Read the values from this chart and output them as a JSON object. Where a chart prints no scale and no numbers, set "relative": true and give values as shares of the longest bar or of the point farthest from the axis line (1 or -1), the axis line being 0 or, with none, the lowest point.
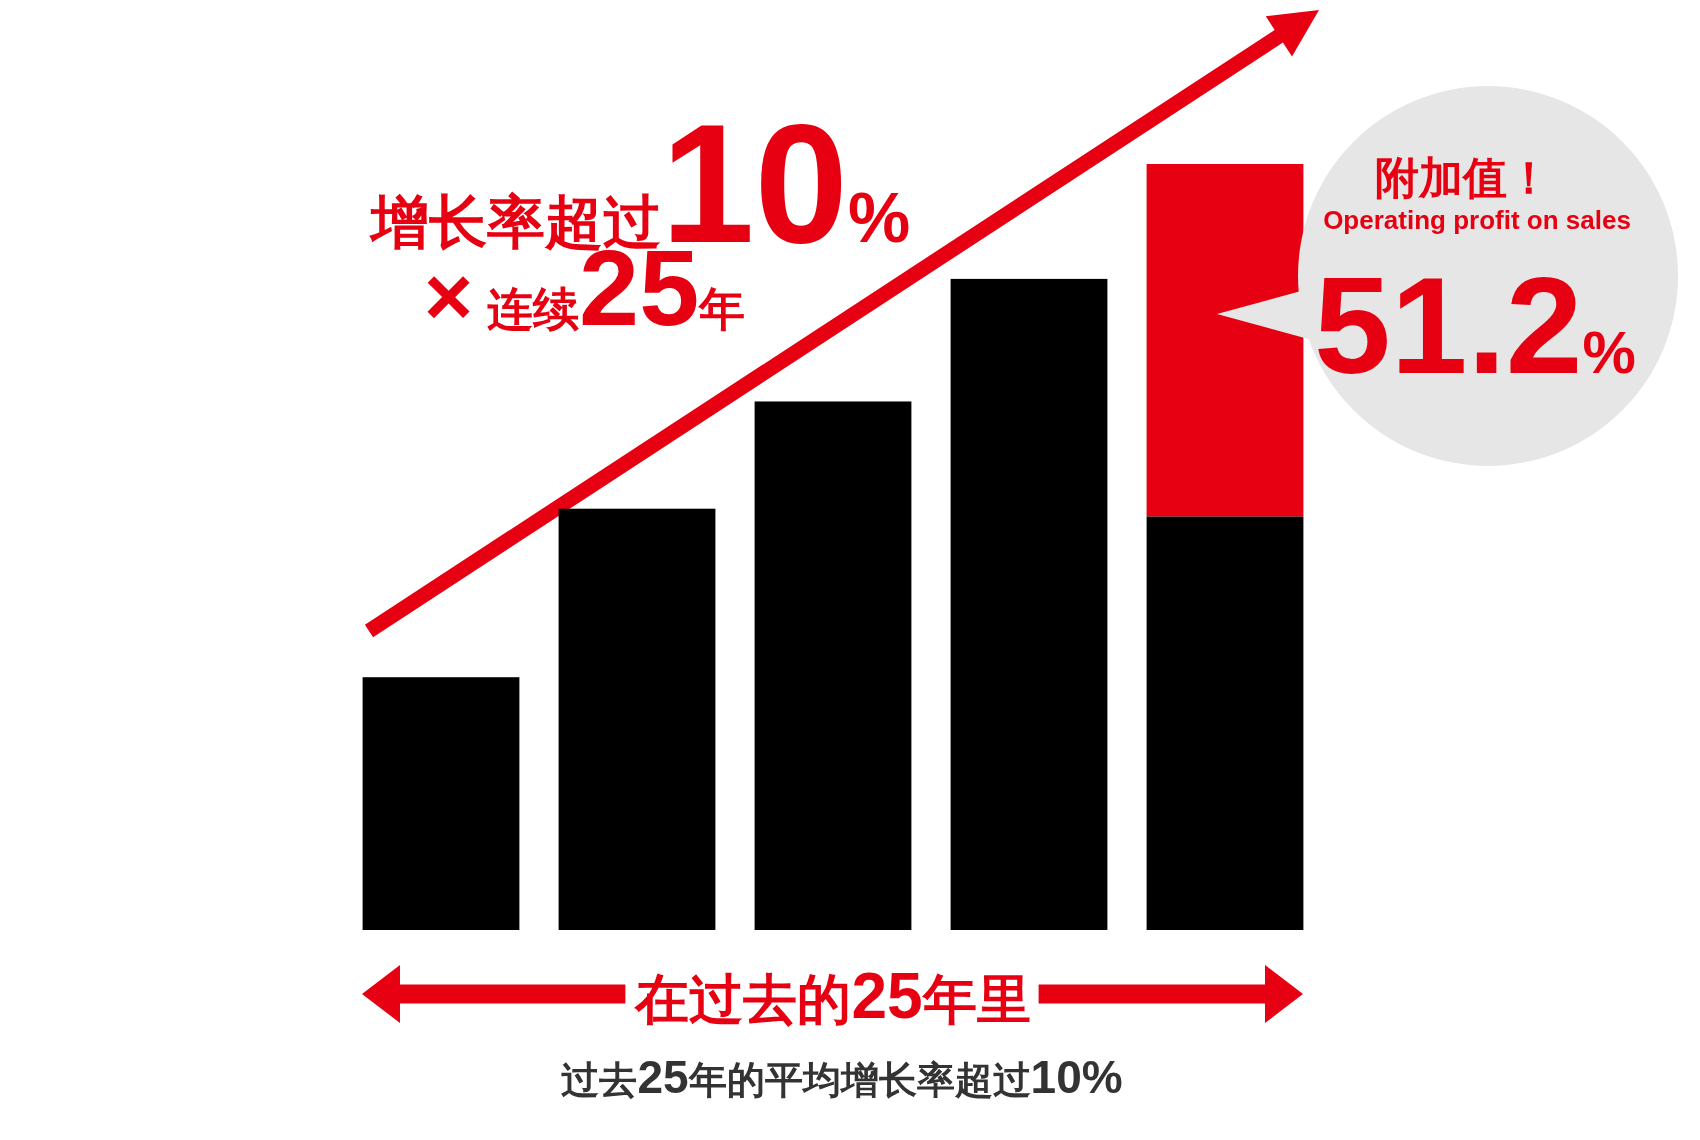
{
  "chart_data": {
    "type": "bar",
    "stacked": true,
    "relative": true,
    "title": "增长率超过10%",
    "subtitle": "×连续25年",
    "xlabel": "在过去的25年里",
    "categories": [
      null,
      null,
      null,
      null,
      null
    ],
    "series": [
      {
        "color": "#000000",
        "values": [
          0.33,
          0.55,
          0.69,
          0.85,
          0.54
        ]
      },
      {
        "color": "#e60012",
        "values": [
          null,
          null,
          null,
          null,
          0.46
        ]
      }
    ],
    "annotations": [
      "附加值！",
      "Operating profit on sales",
      "51.2%",
      "过去25年的平均增长率超过10%"
    ]
  }
}
